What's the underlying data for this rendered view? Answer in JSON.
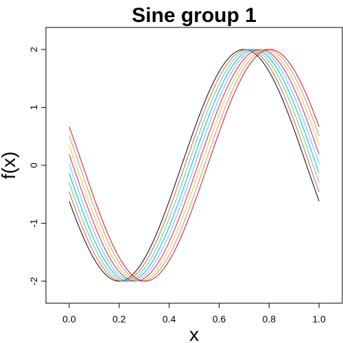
{
  "chart_data": {
    "type": "line",
    "title": "Sine group 1",
    "xlabel": "x",
    "ylabel": "f(x)",
    "xlim": [
      -0.093,
      1.093
    ],
    "ylim": [
      -2.38,
      2.38
    ],
    "x_ticks": [
      "0.0",
      "0.2",
      "0.4",
      "0.6",
      "0.8",
      "1.0"
    ],
    "y_ticks": [
      "-2",
      "-1",
      "0",
      "1",
      "2"
    ],
    "function": "2*sin(2*pi*(x - 0.45 - shift))",
    "x_range": [
      0,
      1
    ],
    "series": [
      {
        "shift": 0.0,
        "color": "#000000"
      },
      {
        "shift": 0.013,
        "color": "#df536b"
      },
      {
        "shift": 0.026,
        "color": "#61d04f"
      },
      {
        "shift": 0.039,
        "color": "#2297e6"
      },
      {
        "shift": 0.052,
        "color": "#28e2e5"
      },
      {
        "shift": 0.065,
        "color": "#cd0bbc"
      },
      {
        "shift": 0.078,
        "color": "#f5c710"
      },
      {
        "shift": 0.091,
        "color": "#9e9e9e"
      },
      {
        "shift": 0.104,
        "color": "#ff0000"
      }
    ]
  }
}
